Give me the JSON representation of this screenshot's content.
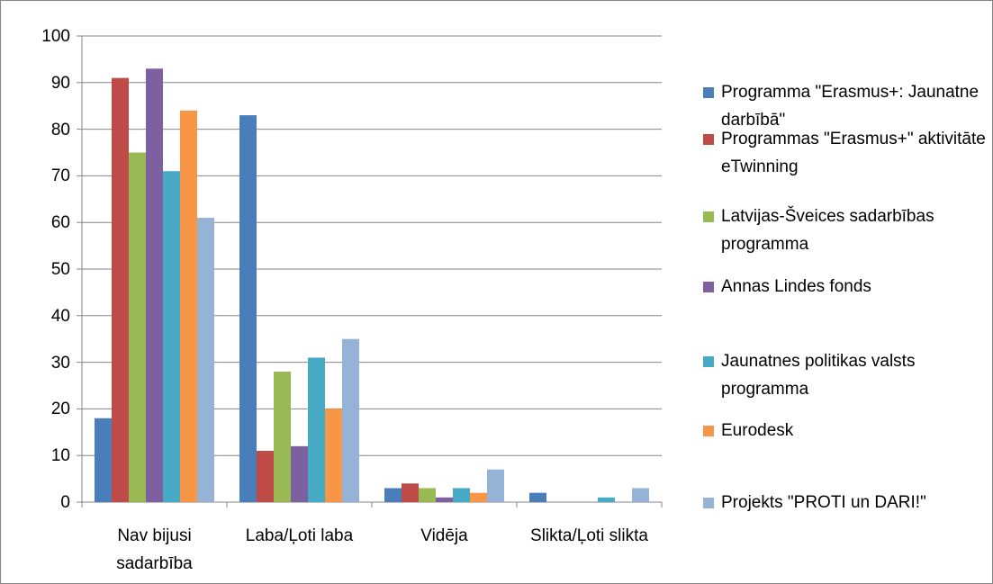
{
  "chart_data": {
    "type": "bar",
    "categories": [
      "Nav bijusi sadarbība",
      "Laba/Ļoti laba",
      "Vidēja",
      "Slikta/Ļoti slikta"
    ],
    "series": [
      {
        "name": "Programma \"Erasmus+: Jaunatne darbībā\"",
        "color": "#4a7ebb",
        "values": [
          18,
          83,
          3,
          2
        ]
      },
      {
        "name": "Programmas \"Erasmus+\" aktivitāte eTwinning",
        "color": "#be4b48",
        "values": [
          91,
          11,
          4,
          0
        ]
      },
      {
        "name": "Latvijas-Šveices sadarbības programma",
        "color": "#98b954",
        "values": [
          75,
          28,
          3,
          0
        ]
      },
      {
        "name": "Annas Lindes fonds",
        "color": "#7d60a0",
        "values": [
          93,
          12,
          1,
          0
        ]
      },
      {
        "name": "Jaunatnes politikas valsts programma",
        "color": "#46aac5",
        "values": [
          71,
          31,
          3,
          1
        ]
      },
      {
        "name": "Eurodesk",
        "color": "#f79646",
        "values": [
          84,
          20,
          2,
          0
        ]
      },
      {
        "name": "Projekts \"PROTI un DARI!\"",
        "color": "#95b3d7",
        "values": [
          61,
          35,
          7,
          3
        ]
      }
    ],
    "ylim": [
      0,
      100
    ],
    "yticks": [
      0,
      10,
      20,
      30,
      40,
      50,
      60,
      70,
      80,
      90,
      100
    ],
    "grid": true,
    "legend": "right"
  }
}
